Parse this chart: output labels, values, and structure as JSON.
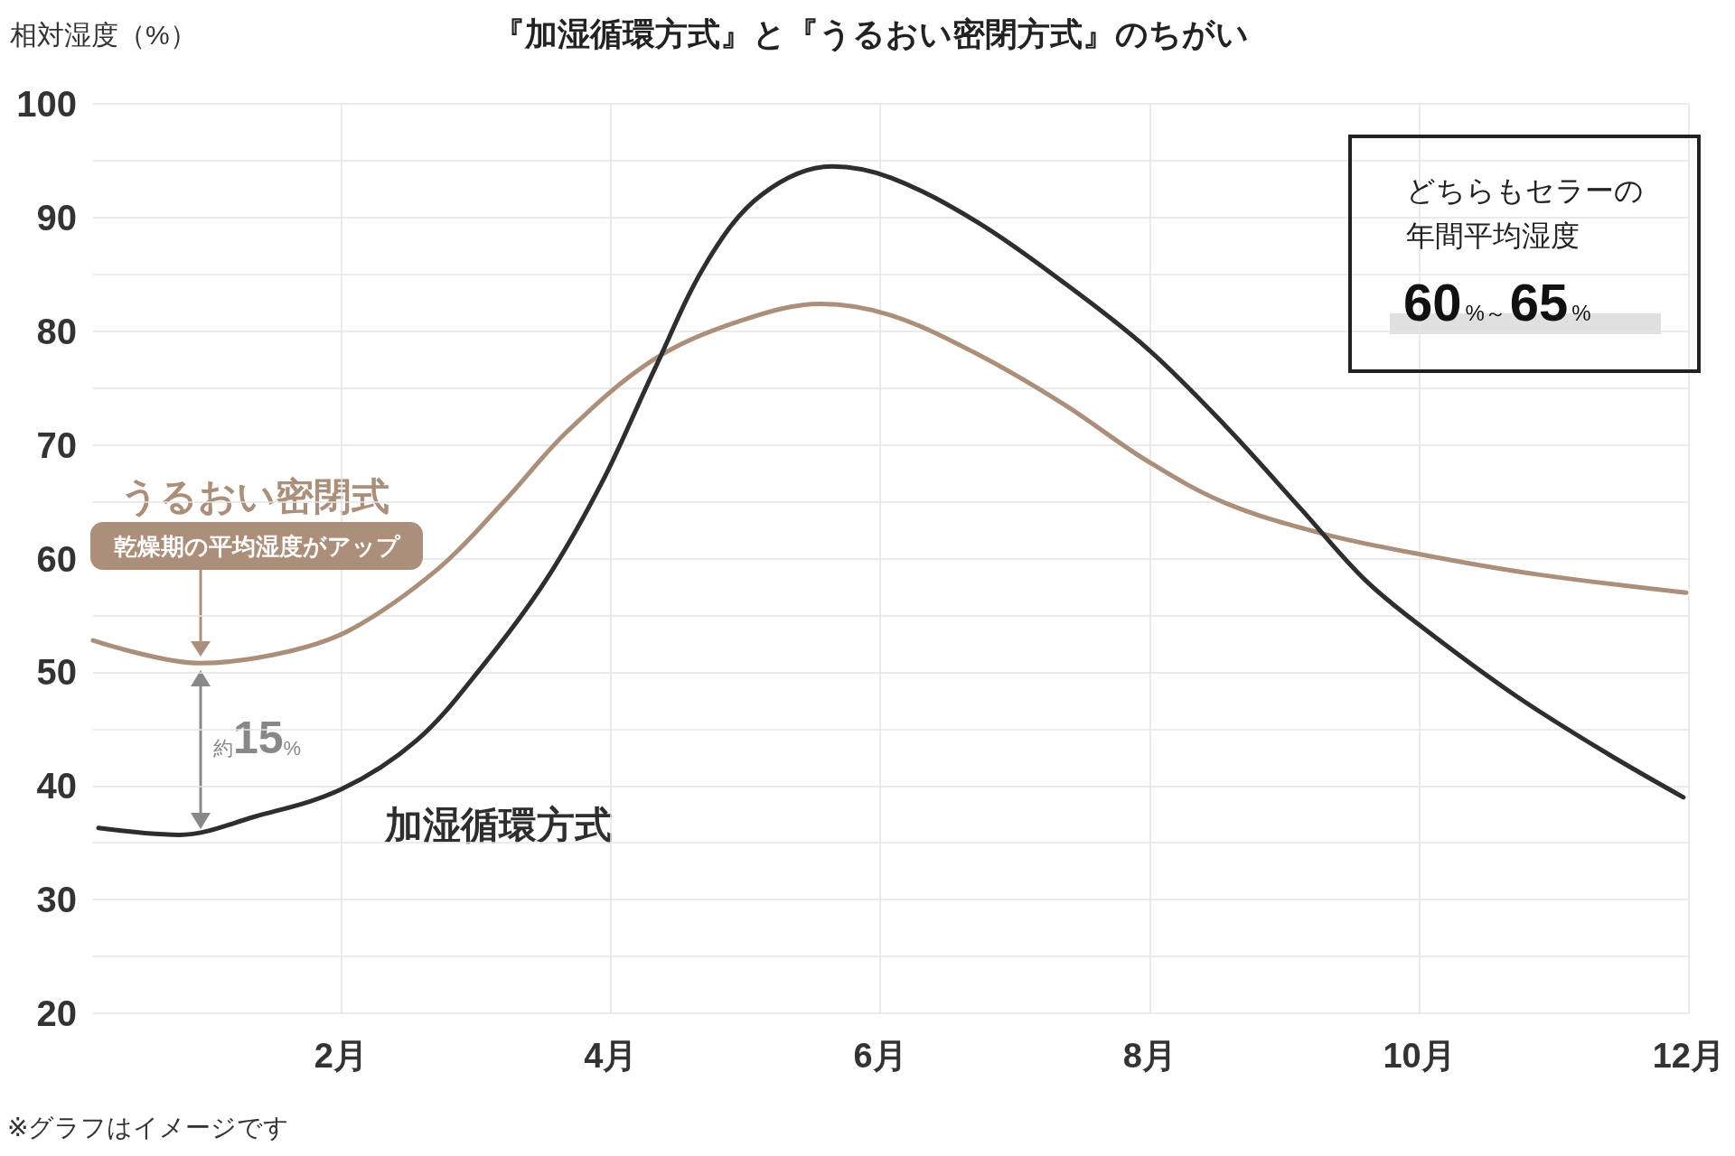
{
  "chart_data": {
    "type": "line",
    "title": "『加湿循環方式』と『うるおい密閉方式』のちがい",
    "ylabel": "相対湿度（%）",
    "xlim": [
      0.16,
      12
    ],
    "xticks": [
      {
        "value": 2,
        "label": "2月"
      },
      {
        "value": 4,
        "label": "4月"
      },
      {
        "value": 6,
        "label": "6月"
      },
      {
        "value": 8,
        "label": "8月"
      },
      {
        "value": 10,
        "label": "10月"
      },
      {
        "value": 12,
        "label": "12月"
      }
    ],
    "ylim": [
      20,
      100
    ],
    "yticks": [
      20,
      {
        "value": 25,
        "label": null
      },
      30,
      {
        "value": 35,
        "label": null
      },
      40,
      {
        "value": 45,
        "label": null
      },
      50,
      {
        "value": 55,
        "label": null
      },
      60,
      {
        "value": 65,
        "label": null
      },
      70,
      {
        "value": 75,
        "label": null
      },
      80,
      {
        "value": 85,
        "label": null
      },
      90,
      {
        "value": 95,
        "label": null
      },
      100
    ],
    "grid": true,
    "legend": false,
    "marker": "none",
    "line_style": "solid",
    "series": [
      {
        "name": "うるおい密閉式",
        "color": "#ab8f7b",
        "x": [
          0.16,
          0.96,
          1.6,
          2.08,
          2.72,
          3.2,
          3.68,
          4.32,
          4.96,
          5.56,
          6.08,
          6.72,
          7.36,
          7.98,
          8.56,
          9.28,
          10.04,
          10.88,
          11.98
        ],
        "values": [
          52.8,
          50.8,
          51.8,
          53.8,
          59.1,
          64.9,
          71.2,
          77.5,
          80.9,
          82.4,
          81.4,
          78,
          73.6,
          68.6,
          64.9,
          62.2,
          60.3,
          58.6,
          57
        ]
      },
      {
        "name": "加湿循環方式",
        "color": "#2e2e2e",
        "x": [
          0.2,
          0.8,
          1.36,
          2,
          2.56,
          3.04,
          3.52,
          3.94,
          4.32,
          4.72,
          5.12,
          5.64,
          6.08,
          6.72,
          7.36,
          7.98,
          8.56,
          9.12,
          9.6,
          10.04,
          10.72,
          11.36,
          11.96
        ],
        "values": [
          36.3,
          35.7,
          37.3,
          39.7,
          44,
          50.4,
          58.1,
          66.8,
          76.5,
          86.2,
          92,
          94.5,
          93.5,
          89.6,
          84.3,
          78.5,
          71.7,
          64.4,
          58.1,
          53.8,
          47.9,
          43.1,
          39
        ]
      }
    ],
    "annotations": [
      "乾燥期の平均湿度がアップ",
      "約15%",
      "どちらもセラーの年間平均湿度",
      "60%～65%",
      "※グラフはイメージです"
    ]
  }
}
